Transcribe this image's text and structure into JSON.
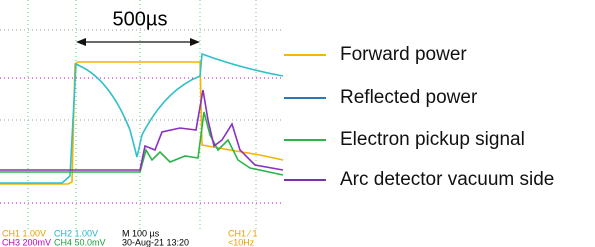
{
  "annotation": "500µs",
  "legend": [
    {
      "label": "Forward power",
      "color": "#f5b800"
    },
    {
      "label": "Reflected power",
      "color": "#2a78b8"
    },
    {
      "label": "Electron pickup signal",
      "color": "#2db34a"
    },
    {
      "label": "Arc detector vacuum side",
      "color": "#7a33a8"
    }
  ],
  "status": [
    [
      {
        "text": "CH1  1.00V",
        "color": "#e8a000"
      },
      {
        "text": "CH2  1.00V",
        "color": "#1fb8c8"
      },
      {
        "text": "M 100 µs",
        "color": "#000000"
      },
      {
        "text": "CH1 ⁄ 1",
        "color": "#e8a000"
      }
    ],
    [
      {
        "text": "CH3  200mV",
        "color": "#c000c0"
      },
      {
        "text": "CH4  50.0mV",
        "color": "#20a040"
      },
      {
        "text": "30-Aug-21 13:20",
        "color": "#000000"
      },
      {
        "text": "<10Hz",
        "color": "#e8a000"
      }
    ]
  ]
}
